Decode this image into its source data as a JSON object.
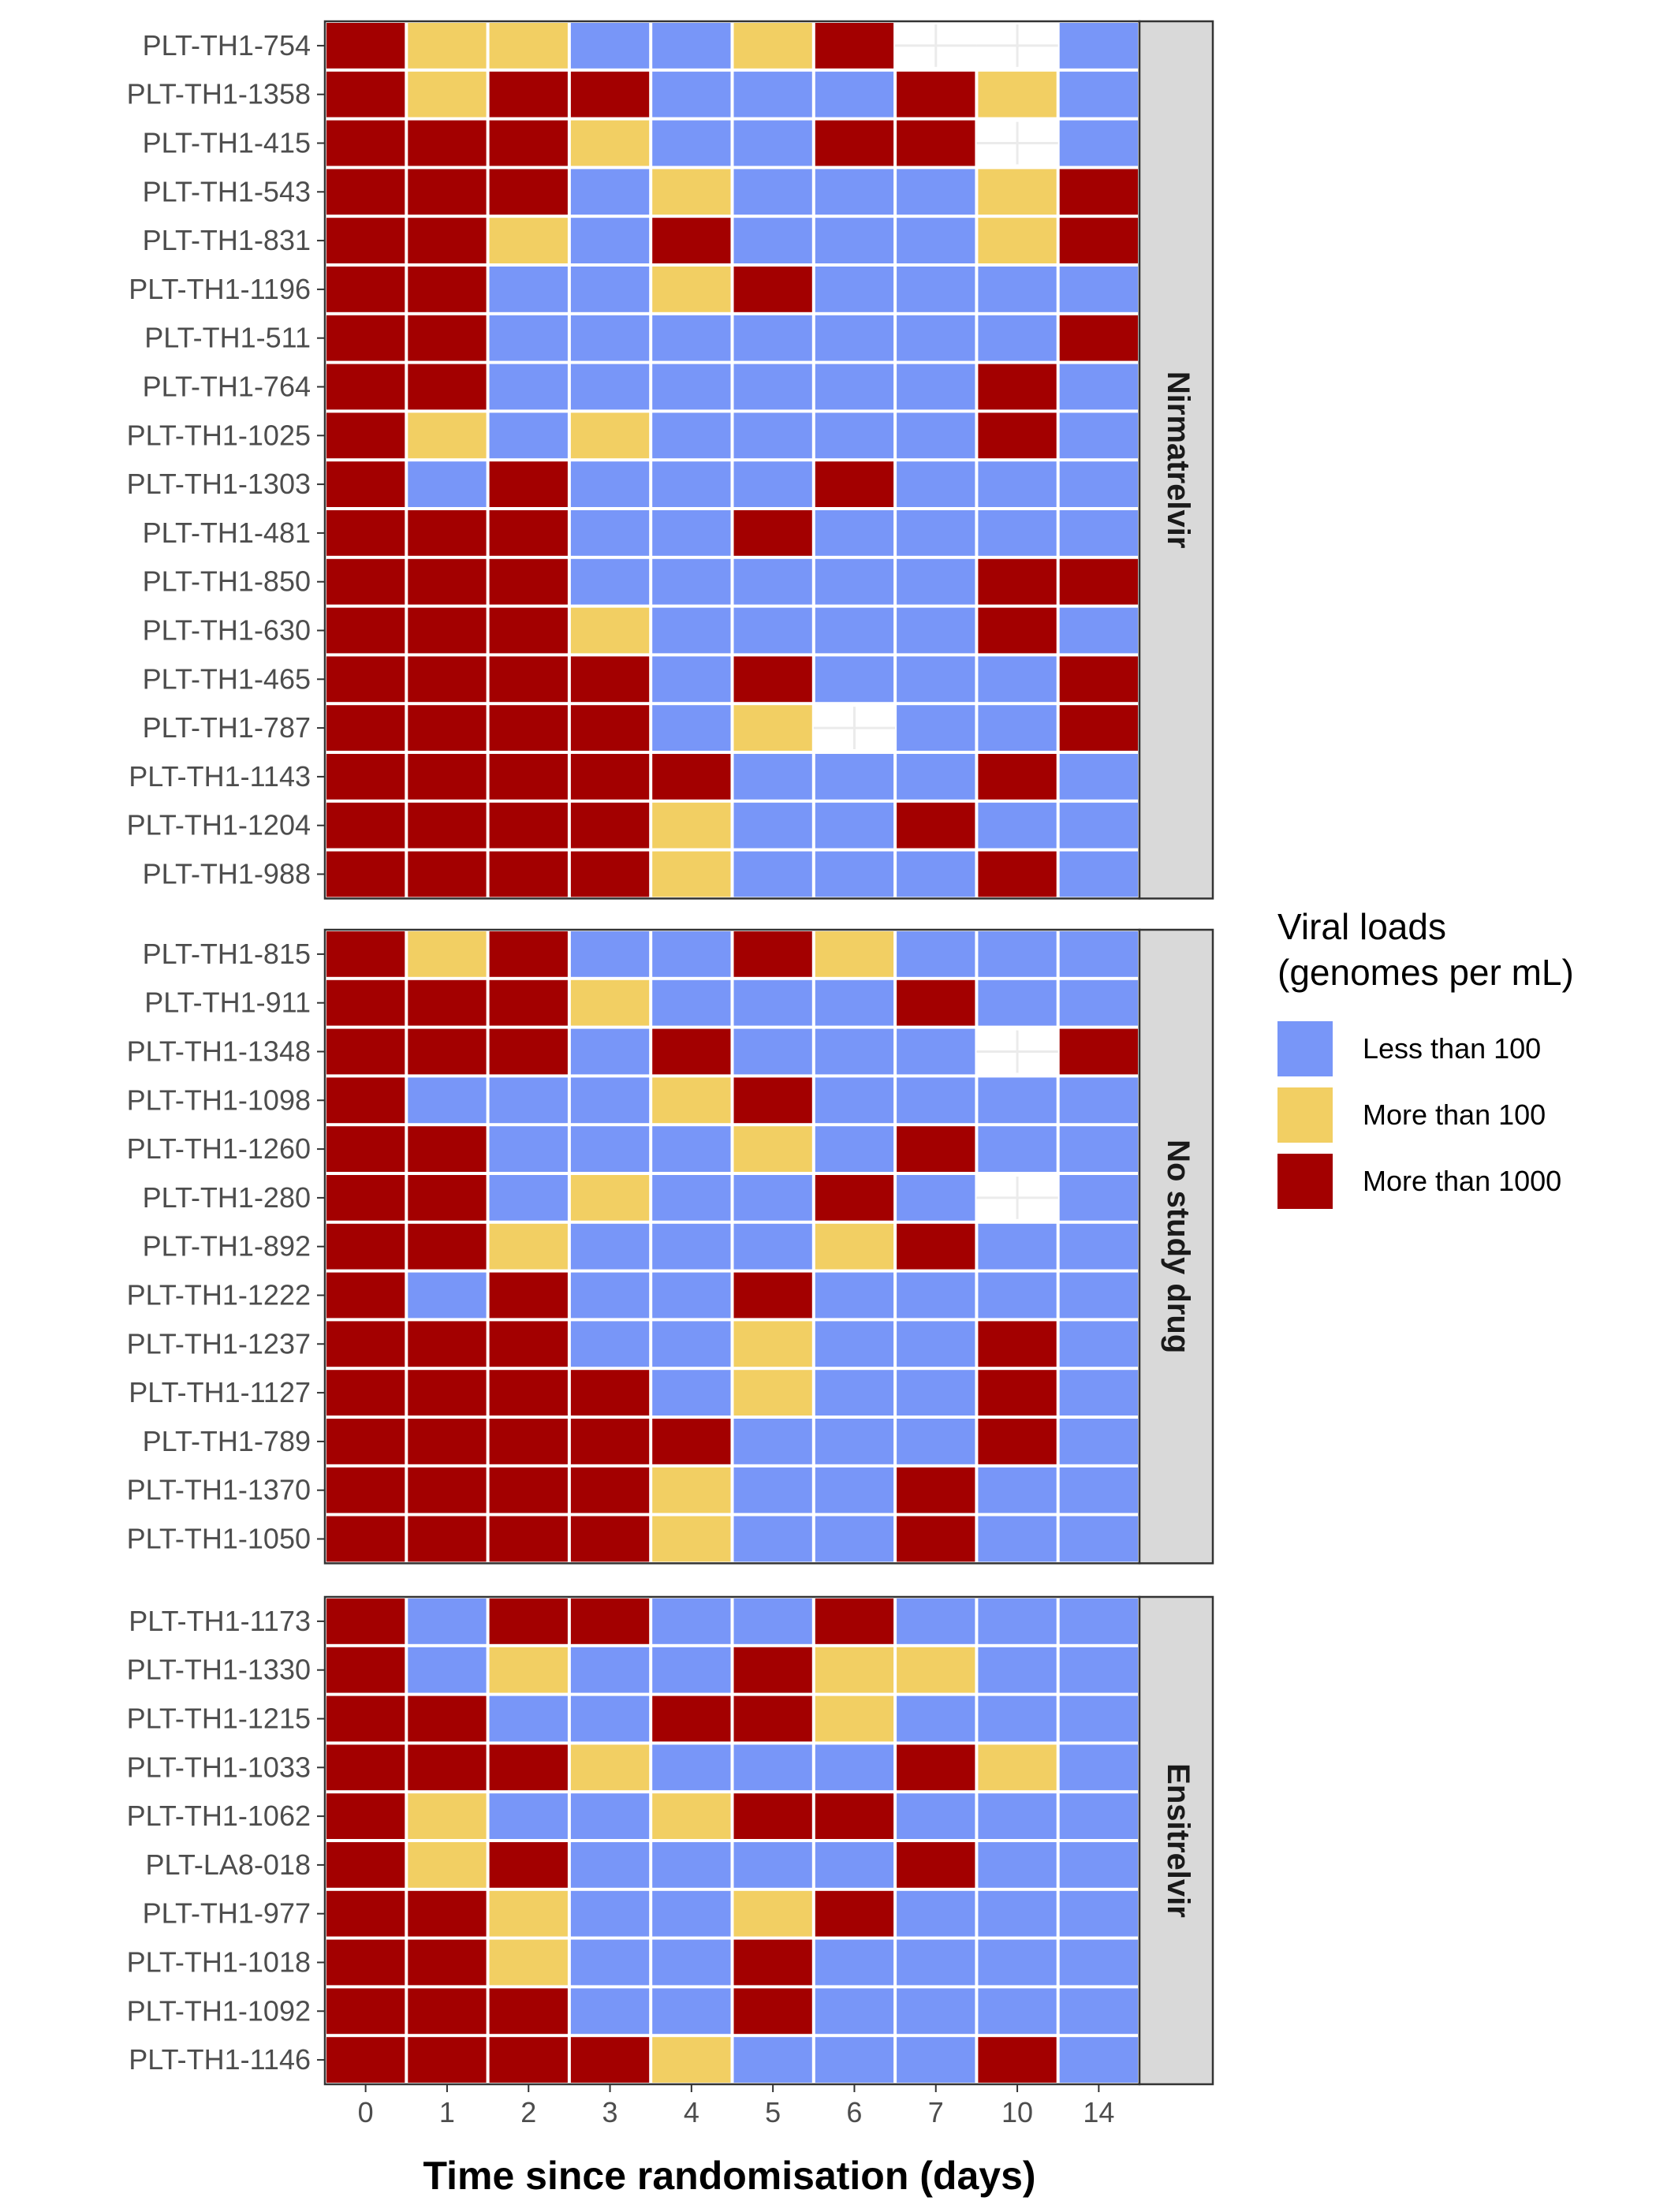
{
  "chart_data": {
    "type": "heatmap",
    "xlabel": "Time since randomisation (days)",
    "x": [
      "0",
      "1",
      "2",
      "3",
      "4",
      "5",
      "6",
      "7",
      "10",
      "14"
    ],
    "legend": {
      "title_lines": [
        "Viral loads",
        "(genomes per mL)"
      ],
      "placement": "right",
      "categories": [
        {
          "code": "L",
          "label": "Less than 100",
          "color": "#7896F8"
        },
        {
          "code": "M",
          "label": "More than 100",
          "color": "#F2CF63"
        },
        {
          "code": "H",
          "label": "More than 1000",
          "color": "#A30000"
        }
      ]
    },
    "missing_color": "#FFFFFF",
    "panels": [
      {
        "name": "Nirmatrelvir",
        "rows": [
          {
            "id": "PLT-TH1-754",
            "values": [
              "H",
              "M",
              "M",
              "L",
              "L",
              "M",
              "H",
              null,
              null,
              "L"
            ]
          },
          {
            "id": "PLT-TH1-1358",
            "values": [
              "H",
              "M",
              "H",
              "H",
              "L",
              "L",
              "L",
              "H",
              "M",
              "L"
            ]
          },
          {
            "id": "PLT-TH1-415",
            "values": [
              "H",
              "H",
              "H",
              "M",
              "L",
              "L",
              "H",
              "H",
              null,
              "L"
            ]
          },
          {
            "id": "PLT-TH1-543",
            "values": [
              "H",
              "H",
              "H",
              "L",
              "M",
              "L",
              "L",
              "L",
              "M",
              "H"
            ]
          },
          {
            "id": "PLT-TH1-831",
            "values": [
              "H",
              "H",
              "M",
              "L",
              "H",
              "L",
              "L",
              "L",
              "M",
              "H"
            ]
          },
          {
            "id": "PLT-TH1-1196",
            "values": [
              "H",
              "H",
              "L",
              "L",
              "M",
              "H",
              "L",
              "L",
              "L",
              "L"
            ]
          },
          {
            "id": "PLT-TH1-511",
            "values": [
              "H",
              "H",
              "L",
              "L",
              "L",
              "L",
              "L",
              "L",
              "L",
              "H"
            ]
          },
          {
            "id": "PLT-TH1-764",
            "values": [
              "H",
              "H",
              "L",
              "L",
              "L",
              "L",
              "L",
              "L",
              "H",
              "L"
            ]
          },
          {
            "id": "PLT-TH1-1025",
            "values": [
              "H",
              "M",
              "L",
              "M",
              "L",
              "L",
              "L",
              "L",
              "H",
              "L"
            ]
          },
          {
            "id": "PLT-TH1-1303",
            "values": [
              "H",
              "L",
              "H",
              "L",
              "L",
              "L",
              "H",
              "L",
              "L",
              "L"
            ]
          },
          {
            "id": "PLT-TH1-481",
            "values": [
              "H",
              "H",
              "H",
              "L",
              "L",
              "H",
              "L",
              "L",
              "L",
              "L"
            ]
          },
          {
            "id": "PLT-TH1-850",
            "values": [
              "H",
              "H",
              "H",
              "L",
              "L",
              "L",
              "L",
              "L",
              "H",
              "H"
            ]
          },
          {
            "id": "PLT-TH1-630",
            "values": [
              "H",
              "H",
              "H",
              "M",
              "L",
              "L",
              "L",
              "L",
              "H",
              "L"
            ]
          },
          {
            "id": "PLT-TH1-465",
            "values": [
              "H",
              "H",
              "H",
              "H",
              "L",
              "H",
              "L",
              "L",
              "L",
              "H"
            ]
          },
          {
            "id": "PLT-TH1-787",
            "values": [
              "H",
              "H",
              "H",
              "H",
              "L",
              "M",
              null,
              "L",
              "L",
              "H"
            ]
          },
          {
            "id": "PLT-TH1-1143",
            "values": [
              "H",
              "H",
              "H",
              "H",
              "H",
              "L",
              "L",
              "L",
              "H",
              "L"
            ]
          },
          {
            "id": "PLT-TH1-1204",
            "values": [
              "H",
              "H",
              "H",
              "H",
              "M",
              "L",
              "L",
              "H",
              "L",
              "L"
            ]
          },
          {
            "id": "PLT-TH1-988",
            "values": [
              "H",
              "H",
              "H",
              "H",
              "M",
              "L",
              "L",
              "L",
              "H",
              "L"
            ]
          }
        ]
      },
      {
        "name": "No study drug",
        "rows": [
          {
            "id": "PLT-TH1-815",
            "values": [
              "H",
              "M",
              "H",
              "L",
              "L",
              "H",
              "M",
              "L",
              "L",
              "L"
            ]
          },
          {
            "id": "PLT-TH1-911",
            "values": [
              "H",
              "H",
              "H",
              "M",
              "L",
              "L",
              "L",
              "H",
              "L",
              "L"
            ]
          },
          {
            "id": "PLT-TH1-1348",
            "values": [
              "H",
              "H",
              "H",
              "L",
              "H",
              "L",
              "L",
              "L",
              null,
              "H"
            ]
          },
          {
            "id": "PLT-TH1-1098",
            "values": [
              "H",
              "L",
              "L",
              "L",
              "M",
              "H",
              "L",
              "L",
              "L",
              "L"
            ]
          },
          {
            "id": "PLT-TH1-1260",
            "values": [
              "H",
              "H",
              "L",
              "L",
              "L",
              "M",
              "L",
              "H",
              "L",
              "L"
            ]
          },
          {
            "id": "PLT-TH1-280",
            "values": [
              "H",
              "H",
              "L",
              "M",
              "L",
              "L",
              "H",
              "L",
              null,
              "L"
            ]
          },
          {
            "id": "PLT-TH1-892",
            "values": [
              "H",
              "H",
              "M",
              "L",
              "L",
              "L",
              "M",
              "H",
              "L",
              "L"
            ]
          },
          {
            "id": "PLT-TH1-1222",
            "values": [
              "H",
              "L",
              "H",
              "L",
              "L",
              "H",
              "L",
              "L",
              "L",
              "L"
            ]
          },
          {
            "id": "PLT-TH1-1237",
            "values": [
              "H",
              "H",
              "H",
              "L",
              "L",
              "M",
              "L",
              "L",
              "H",
              "L"
            ]
          },
          {
            "id": "PLT-TH1-1127",
            "values": [
              "H",
              "H",
              "H",
              "H",
              "L",
              "M",
              "L",
              "L",
              "H",
              "L"
            ]
          },
          {
            "id": "PLT-TH1-789",
            "values": [
              "H",
              "H",
              "H",
              "H",
              "H",
              "L",
              "L",
              "L",
              "H",
              "L"
            ]
          },
          {
            "id": "PLT-TH1-1370",
            "values": [
              "H",
              "H",
              "H",
              "H",
              "M",
              "L",
              "L",
              "H",
              "L",
              "L"
            ]
          },
          {
            "id": "PLT-TH1-1050",
            "values": [
              "H",
              "H",
              "H",
              "H",
              "M",
              "L",
              "L",
              "H",
              "L",
              "L"
            ]
          }
        ]
      },
      {
        "name": "Ensitrelvir",
        "rows": [
          {
            "id": "PLT-TH1-1173",
            "values": [
              "H",
              "L",
              "H",
              "H",
              "L",
              "L",
              "H",
              "L",
              "L",
              "L"
            ]
          },
          {
            "id": "PLT-TH1-1330",
            "values": [
              "H",
              "L",
              "M",
              "L",
              "L",
              "H",
              "M",
              "M",
              "L",
              "L"
            ]
          },
          {
            "id": "PLT-TH1-1215",
            "values": [
              "H",
              "H",
              "L",
              "L",
              "H",
              "H",
              "M",
              "L",
              "L",
              "L"
            ]
          },
          {
            "id": "PLT-TH1-1033",
            "values": [
              "H",
              "H",
              "H",
              "M",
              "L",
              "L",
              "L",
              "H",
              "M",
              "L"
            ]
          },
          {
            "id": "PLT-TH1-1062",
            "values": [
              "H",
              "M",
              "L",
              "L",
              "M",
              "H",
              "H",
              "L",
              "L",
              "L"
            ]
          },
          {
            "id": "PLT-LA8-018",
            "values": [
              "H",
              "M",
              "H",
              "L",
              "L",
              "L",
              "L",
              "H",
              "L",
              "L"
            ]
          },
          {
            "id": "PLT-TH1-977",
            "values": [
              "H",
              "H",
              "M",
              "L",
              "L",
              "M",
              "H",
              "L",
              "L",
              "L"
            ]
          },
          {
            "id": "PLT-TH1-1018",
            "values": [
              "H",
              "H",
              "M",
              "L",
              "L",
              "H",
              "L",
              "L",
              "L",
              "L"
            ]
          },
          {
            "id": "PLT-TH1-1092",
            "values": [
              "H",
              "H",
              "H",
              "L",
              "L",
              "H",
              "L",
              "L",
              "L",
              "L"
            ]
          },
          {
            "id": "PLT-TH1-1146",
            "values": [
              "H",
              "H",
              "H",
              "H",
              "M",
              "L",
              "L",
              "L",
              "H",
              "L"
            ]
          }
        ]
      }
    ]
  }
}
